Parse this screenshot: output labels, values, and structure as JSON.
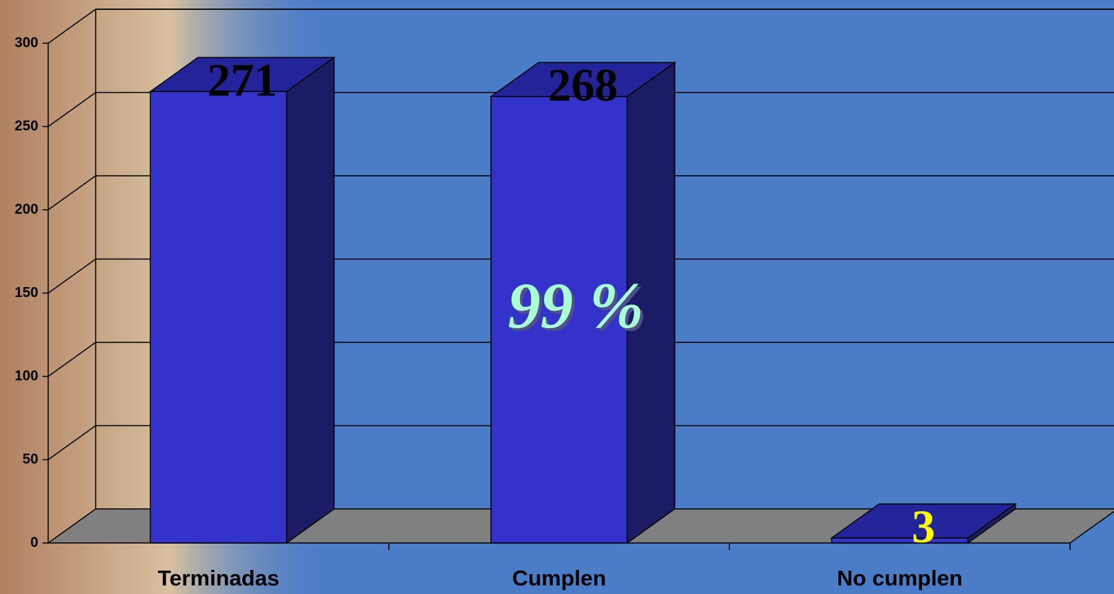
{
  "chart_data": {
    "type": "bar3d",
    "categories": [
      "Terminadas",
      "Cumplen",
      "No cumplen"
    ],
    "values": [
      271,
      268,
      3
    ],
    "color": "#3333cc",
    "label_colors": [
      "#000000",
      "#000000",
      "#ffff00"
    ],
    "ylim": [
      0,
      300
    ],
    "yticks": [
      0,
      50,
      100,
      150,
      200,
      250,
      300
    ],
    "grid": true,
    "annotation": "99 %"
  }
}
